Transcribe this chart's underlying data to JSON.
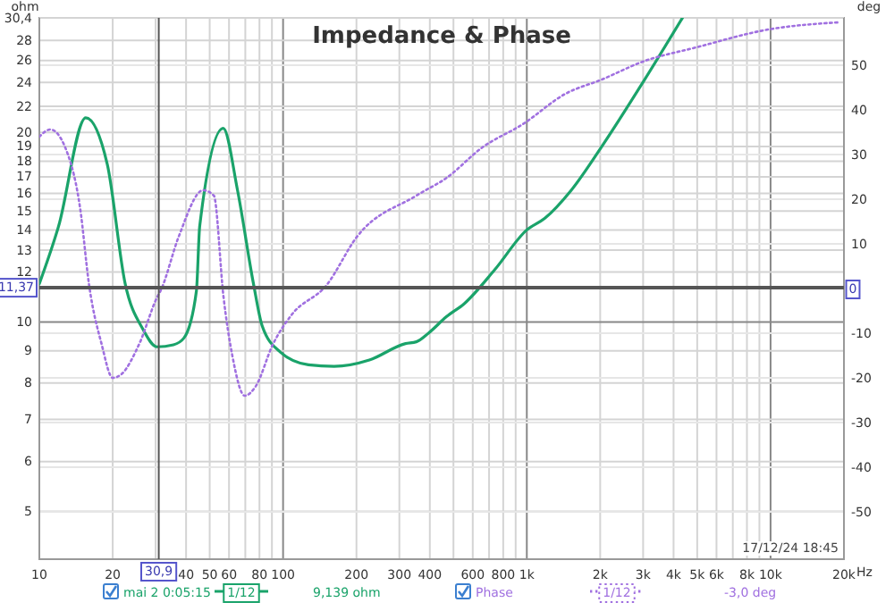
{
  "chart_data": {
    "type": "line",
    "title": "Impedance & Phase",
    "ylabel": "ohm",
    "y2label": "deg",
    "log": "xy",
    "grid": true,
    "legend": "bottom",
    "marker": "none",
    "xlim": [
      10,
      20000
    ],
    "ylim": [
      4.2,
      30.4
    ],
    "y2lim": [
      -60.6,
      60.6
    ],
    "xticks": [
      10,
      20,
      {
        "value": 30,
        "label": null
      },
      40,
      50,
      60,
      {
        "value": 70,
        "label": null
      },
      80,
      {
        "value": 90,
        "label": null
      },
      100,
      200,
      300,
      400,
      {
        "value": 500,
        "label": null
      },
      600,
      {
        "value": 700,
        "label": null
      },
      800,
      {
        "value": 900,
        "label": null
      },
      {
        "value": 1000,
        "label": "1k"
      },
      {
        "value": 2000,
        "label": "2k"
      },
      {
        "value": 3000,
        "label": "3k"
      },
      {
        "value": 4000,
        "label": "4k"
      },
      {
        "value": 5000,
        "label": "5k"
      },
      {
        "value": 6000,
        "label": "6k"
      },
      {
        "value": 7000,
        "label": null
      },
      {
        "value": 8000,
        "label": "8k"
      },
      {
        "value": 9000,
        "label": null
      },
      {
        "value": 10000,
        "label": "10k"
      },
      {
        "value": 20000,
        "label": "20k"
      }
    ],
    "xlabel": "Hz",
    "yticks": [
      5,
      6,
      7,
      8,
      9,
      10,
      12,
      13,
      14,
      15,
      16,
      17,
      18,
      19,
      20,
      22,
      24,
      26,
      28,
      {
        "value": 30.4,
        "label": "30,4"
      }
    ],
    "y2ticks": [
      -50,
      -40,
      -30,
      -20,
      -10,
      10,
      20,
      30,
      40,
      50
    ],
    "ref_lines": [
      {
        "axis": "x",
        "value": 30.9,
        "label": "30,9",
        "color": "#555555"
      },
      {
        "axis": "y",
        "value": 11.37,
        "label": "11,37",
        "color": "#555555"
      },
      {
        "axis": "y2",
        "value": 0,
        "label": "0",
        "color": "#555555"
      }
    ],
    "annotations": [
      "1/12",
      "9,139 ohm",
      "1/12",
      "-3,0 deg",
      "17/12/24 18:45"
    ],
    "series": [
      {
        "name": "mai 2 0:05:15",
        "color": "#1aa36a",
        "line_style": "solid",
        "x": [
          10,
          12,
          15.5,
          19,
          22.5,
          26.6,
          30.4,
          35.5,
          39.2,
          44.1,
          45.5,
          56.8,
          65,
          75.6,
          82,
          97.6,
          127,
          162,
          226,
          318,
          352,
          395,
          469,
          555,
          738,
          1000,
          1183,
          1524,
          2032,
          2992,
          4350
        ],
        "values": [
          11.5,
          14.2,
          21.1,
          17.8,
          11.5,
          9.74,
          9.13,
          9.2,
          9.43,
          11.2,
          14.2,
          20.3,
          16.2,
          11.5,
          9.87,
          8.95,
          8.55,
          8.5,
          8.7,
          9.24,
          9.3,
          9.6,
          10.2,
          10.7,
          12.1,
          14.0,
          14.6,
          16.2,
          19.0,
          24.0,
          30.4
        ]
      },
      {
        "name": "Phase",
        "color": "#a070e0",
        "line_style": "dotted",
        "axis": "y2",
        "x": [
          10,
          11.1,
          13.1,
          14.7,
          16,
          18,
          20,
          21.7,
          25.7,
          30.4,
          31.5,
          37.3,
          47,
          52,
          57,
          62,
          69.6,
          77,
          91,
          108,
          151,
          201,
          352,
          469,
          657,
          963,
          1440,
          2032,
          2992,
          4960,
          9800,
          19000
        ],
        "values": [
          34,
          35.6,
          30,
          18,
          0.8,
          -12.4,
          -20,
          -19.2,
          -12.4,
          -2,
          -0.4,
          11.6,
          22,
          20.8,
          -2,
          -15.2,
          -24,
          -22,
          -12.4,
          -6,
          0.8,
          11.6,
          20.8,
          24.8,
          31.6,
          36.8,
          43.6,
          46.8,
          50.8,
          54,
          58,
          59.6
        ]
      }
    ]
  }
}
